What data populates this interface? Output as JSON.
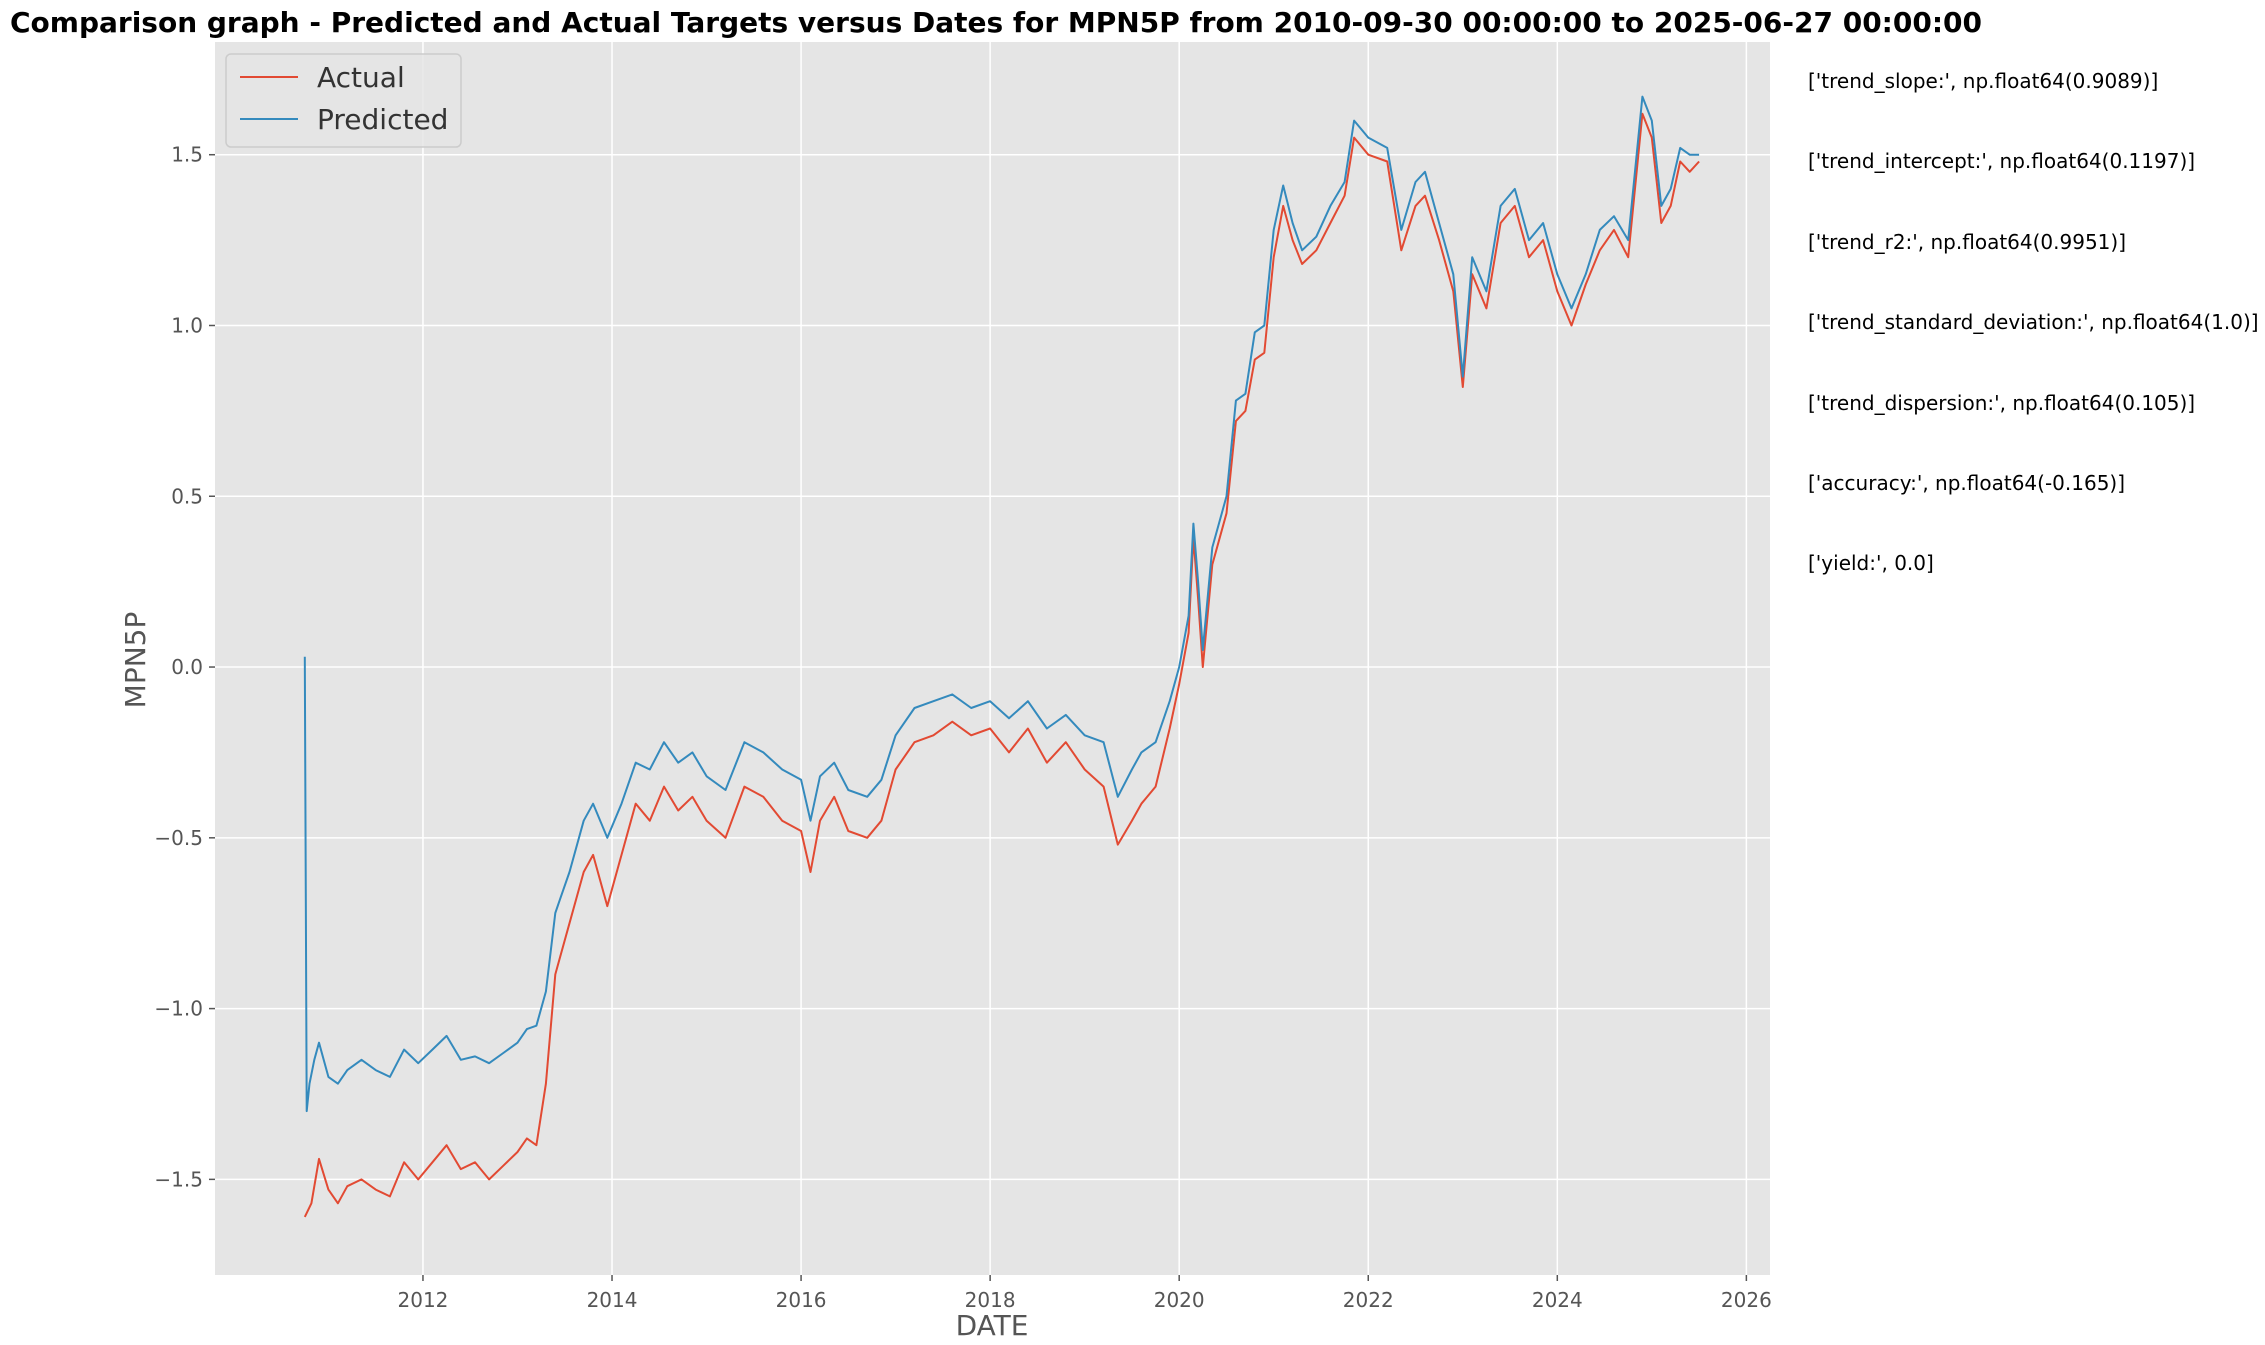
{
  "chart_data": {
    "type": "line",
    "title": "Comparison graph - Predicted and Actual Targets versus Dates for MPN5P from 2010-09-30 00:00:00 to 2025-06-27 00:00:00",
    "xlabel": "DATE",
    "ylabel": "MPN5P",
    "xlim": [
      2009.8,
      2026.25
    ],
    "ylim": [
      -1.78,
      1.83
    ],
    "x_ticks": [
      2012,
      2014,
      2016,
      2018,
      2020,
      2022,
      2024,
      2026
    ],
    "y_ticks": [
      -1.5,
      -1.0,
      -0.5,
      0.0,
      0.5,
      1.0,
      1.5
    ],
    "y_tick_labels": [
      "−1.5",
      "−1.0",
      "−0.5",
      "0.0",
      "0.5",
      "1.0",
      "1.5"
    ],
    "grid": true,
    "legend_position": "top-left",
    "series": [
      {
        "name": "Actual",
        "color": "#E24A33",
        "x": [
          2010.75,
          2010.82,
          2010.9,
          2011.0,
          2011.1,
          2011.2,
          2011.35,
          2011.5,
          2011.65,
          2011.8,
          2011.95,
          2012.1,
          2012.25,
          2012.4,
          2012.55,
          2012.7,
          2012.85,
          2013.0,
          2013.1,
          2013.2,
          2013.3,
          2013.4,
          2013.45,
          2013.55,
          2013.7,
          2013.8,
          2013.95,
          2014.1,
          2014.25,
          2014.4,
          2014.55,
          2014.7,
          2014.85,
          2015.0,
          2015.2,
          2015.4,
          2015.6,
          2015.8,
          2016.0,
          2016.1,
          2016.2,
          2016.35,
          2016.5,
          2016.7,
          2016.85,
          2017.0,
          2017.2,
          2017.4,
          2017.6,
          2017.8,
          2018.0,
          2018.2,
          2018.4,
          2018.6,
          2018.8,
          2019.0,
          2019.2,
          2019.35,
          2019.5,
          2019.6,
          2019.75,
          2019.9,
          2020.0,
          2020.1,
          2020.15,
          2020.2,
          2020.25,
          2020.35,
          2020.5,
          2020.6,
          2020.7,
          2020.8,
          2020.9,
          2021.0,
          2021.1,
          2021.2,
          2021.3,
          2021.45,
          2021.6,
          2021.75,
          2021.85,
          2022.0,
          2022.2,
          2022.35,
          2022.5,
          2022.6,
          2022.75,
          2022.9,
          2023.0,
          2023.1,
          2023.25,
          2023.4,
          2023.55,
          2023.7,
          2023.85,
          2024.0,
          2024.15,
          2024.3,
          2024.45,
          2024.6,
          2024.75,
          2024.9,
          2025.0,
          2025.1,
          2025.2,
          2025.3,
          2025.4,
          2025.5
        ],
        "y": [
          -1.61,
          -1.57,
          -1.44,
          -1.53,
          -1.57,
          -1.52,
          -1.5,
          -1.53,
          -1.55,
          -1.45,
          -1.5,
          -1.45,
          -1.4,
          -1.47,
          -1.45,
          -1.5,
          -1.46,
          -1.42,
          -1.38,
          -1.4,
          -1.22,
          -0.9,
          -0.85,
          -0.75,
          -0.6,
          -0.55,
          -0.7,
          -0.55,
          -0.4,
          -0.45,
          -0.35,
          -0.42,
          -0.38,
          -0.45,
          -0.5,
          -0.35,
          -0.38,
          -0.45,
          -0.48,
          -0.6,
          -0.45,
          -0.38,
          -0.48,
          -0.5,
          -0.45,
          -0.3,
          -0.22,
          -0.2,
          -0.16,
          -0.2,
          -0.18,
          -0.25,
          -0.18,
          -0.28,
          -0.22,
          -0.3,
          -0.35,
          -0.52,
          -0.45,
          -0.4,
          -0.35,
          -0.18,
          -0.05,
          0.1,
          0.38,
          0.2,
          0.0,
          0.3,
          0.45,
          0.72,
          0.75,
          0.9,
          0.92,
          1.2,
          1.35,
          1.25,
          1.18,
          1.22,
          1.3,
          1.38,
          1.55,
          1.5,
          1.48,
          1.22,
          1.35,
          1.38,
          1.25,
          1.1,
          0.82,
          1.15,
          1.05,
          1.3,
          1.35,
          1.2,
          1.25,
          1.1,
          1.0,
          1.12,
          1.22,
          1.28,
          1.2,
          1.62,
          1.55,
          1.3,
          1.35,
          1.48,
          1.45,
          1.48
        ]
      },
      {
        "name": "Predicted",
        "color": "#348ABD",
        "x": [
          2010.75,
          2010.77,
          2010.8,
          2010.85,
          2010.9,
          2011.0,
          2011.1,
          2011.2,
          2011.35,
          2011.5,
          2011.65,
          2011.8,
          2011.95,
          2012.1,
          2012.25,
          2012.4,
          2012.55,
          2012.7,
          2012.85,
          2013.0,
          2013.1,
          2013.2,
          2013.3,
          2013.4,
          2013.45,
          2013.55,
          2013.7,
          2013.8,
          2013.95,
          2014.1,
          2014.25,
          2014.4,
          2014.55,
          2014.7,
          2014.85,
          2015.0,
          2015.2,
          2015.4,
          2015.6,
          2015.8,
          2016.0,
          2016.1,
          2016.2,
          2016.35,
          2016.5,
          2016.7,
          2016.85,
          2017.0,
          2017.2,
          2017.4,
          2017.6,
          2017.8,
          2018.0,
          2018.2,
          2018.4,
          2018.6,
          2018.8,
          2019.0,
          2019.2,
          2019.35,
          2019.5,
          2019.6,
          2019.75,
          2019.9,
          2020.0,
          2020.1,
          2020.15,
          2020.2,
          2020.25,
          2020.35,
          2020.5,
          2020.6,
          2020.7,
          2020.8,
          2020.9,
          2021.0,
          2021.1,
          2021.2,
          2021.3,
          2021.45,
          2021.6,
          2021.75,
          2021.85,
          2022.0,
          2022.2,
          2022.35,
          2022.5,
          2022.6,
          2022.75,
          2022.9,
          2023.0,
          2023.1,
          2023.25,
          2023.4,
          2023.55,
          2023.7,
          2023.85,
          2024.0,
          2024.15,
          2024.3,
          2024.45,
          2024.6,
          2024.75,
          2024.9,
          2025.0,
          2025.1,
          2025.2,
          2025.3,
          2025.4,
          2025.5
        ],
        "y": [
          0.03,
          -1.3,
          -1.22,
          -1.15,
          -1.1,
          -1.2,
          -1.22,
          -1.18,
          -1.15,
          -1.18,
          -1.2,
          -1.12,
          -1.16,
          -1.12,
          -1.08,
          -1.15,
          -1.14,
          -1.16,
          -1.13,
          -1.1,
          -1.06,
          -1.05,
          -0.95,
          -0.72,
          -0.68,
          -0.6,
          -0.45,
          -0.4,
          -0.5,
          -0.4,
          -0.28,
          -0.3,
          -0.22,
          -0.28,
          -0.25,
          -0.32,
          -0.36,
          -0.22,
          -0.25,
          -0.3,
          -0.33,
          -0.45,
          -0.32,
          -0.28,
          -0.36,
          -0.38,
          -0.33,
          -0.2,
          -0.12,
          -0.1,
          -0.08,
          -0.12,
          -0.1,
          -0.15,
          -0.1,
          -0.18,
          -0.14,
          -0.2,
          -0.22,
          -0.38,
          -0.3,
          -0.25,
          -0.22,
          -0.1,
          0.0,
          0.15,
          0.42,
          0.25,
          0.05,
          0.35,
          0.5,
          0.78,
          0.8,
          0.98,
          1.0,
          1.28,
          1.41,
          1.3,
          1.22,
          1.26,
          1.35,
          1.42,
          1.6,
          1.55,
          1.52,
          1.28,
          1.42,
          1.45,
          1.3,
          1.15,
          0.85,
          1.2,
          1.1,
          1.35,
          1.4,
          1.25,
          1.3,
          1.15,
          1.05,
          1.15,
          1.28,
          1.32,
          1.25,
          1.67,
          1.6,
          1.35,
          1.4,
          1.52,
          1.5,
          1.5
        ]
      }
    ]
  },
  "stats": [
    "['trend_slope:', np.float64(0.9089)]",
    "['trend_intercept:', np.float64(0.1197)]",
    "['trend_r2:', np.float64(0.9951)]",
    "['trend_standard_deviation:', np.float64(1.0)]",
    "['trend_dispersion:', np.float64(0.105)]",
    "['accuracy:', np.float64(-0.165)]",
    "['yield:', 0.0]"
  ],
  "colors": {
    "plot_background": "#E5E5E5",
    "grid": "#FFFFFF"
  }
}
